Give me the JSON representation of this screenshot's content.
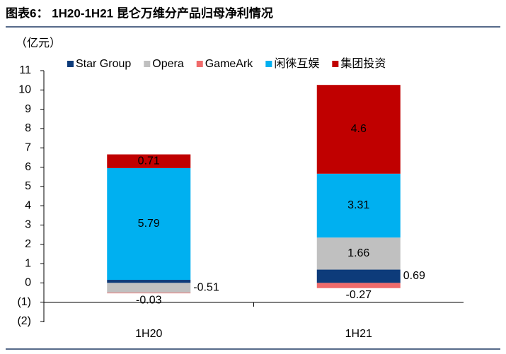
{
  "chart_data": {
    "type": "stacked-bar",
    "title": "图表6：  1H20-1H21 昆仑万维分产品归母净利情况",
    "unit_label": "（亿元）",
    "categories": [
      "1H20",
      "1H21"
    ],
    "series": [
      {
        "name": "Star Group",
        "color": "#0d3b7a",
        "values": [
          0.16,
          0.69
        ]
      },
      {
        "name": "Opera",
        "color": "#c0c0c0",
        "values": [
          -0.51,
          1.66
        ]
      },
      {
        "name": "GameArk",
        "color": "#f06b6b",
        "values": [
          -0.03,
          -0.27
        ]
      },
      {
        "name": "闲徕互娱",
        "color": "#00b0f0",
        "values": [
          5.79,
          3.31
        ]
      },
      {
        "name": "集团投资",
        "color": "#c00000",
        "values": [
          0.71,
          4.6
        ]
      }
    ],
    "ylim": [
      -2,
      11
    ],
    "yticks": [
      {
        "value": -2,
        "label": "(2)"
      },
      {
        "value": -1,
        "label": "(1)"
      },
      0,
      1,
      2,
      3,
      4,
      5,
      6,
      7,
      8,
      9,
      10,
      11
    ]
  }
}
